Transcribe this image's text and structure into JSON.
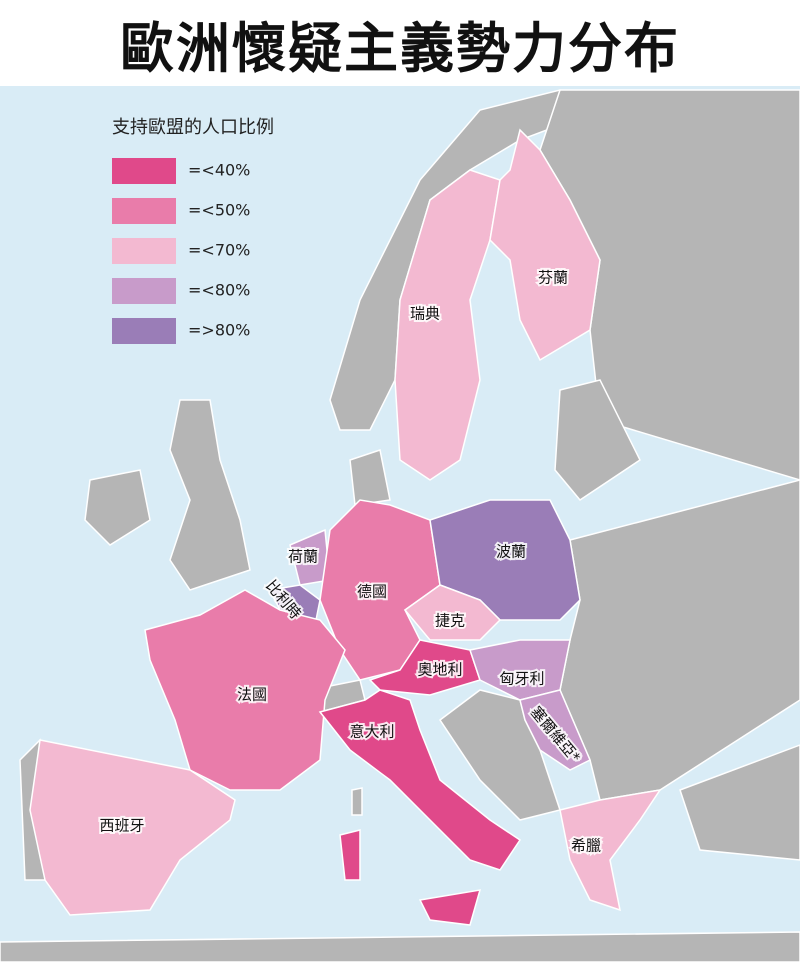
{
  "title": "歐洲懷疑主義勢力分布",
  "legend": {
    "title": "支持歐盟的人口比例",
    "items": [
      {
        "label": "=<40%",
        "color": "#e0498a"
      },
      {
        "label": "=<50%",
        "color": "#e97caa"
      },
      {
        "label": "=<70%",
        "color": "#f3b9d1"
      },
      {
        "label": "=<80%",
        "color": "#c89bca"
      },
      {
        "label": "=>80%",
        "color": "#9a7db7"
      }
    ]
  },
  "countries": [
    {
      "label": "瑞典",
      "color": "#f3b9d1"
    },
    {
      "label": "芬蘭",
      "color": "#f3b9d1"
    },
    {
      "label": "荷蘭",
      "color": "#c89bca"
    },
    {
      "label": "比利時",
      "color": "#9a7db7"
    },
    {
      "label": "德國",
      "color": "#e97caa"
    },
    {
      "label": "波蘭",
      "color": "#9a7db7"
    },
    {
      "label": "捷克",
      "color": "#f3b9d1"
    },
    {
      "label": "奧地利",
      "color": "#e0498a"
    },
    {
      "label": "匈牙利",
      "color": "#c89bca"
    },
    {
      "label": "法國",
      "color": "#e97caa"
    },
    {
      "label": "意大利",
      "color": "#e0498a"
    },
    {
      "label": "塞爾維亞*",
      "color": "#c89bca"
    },
    {
      "label": "西班牙",
      "color": "#f3b9d1"
    },
    {
      "label": "希臘",
      "color": "#f3b9d1"
    }
  ]
}
